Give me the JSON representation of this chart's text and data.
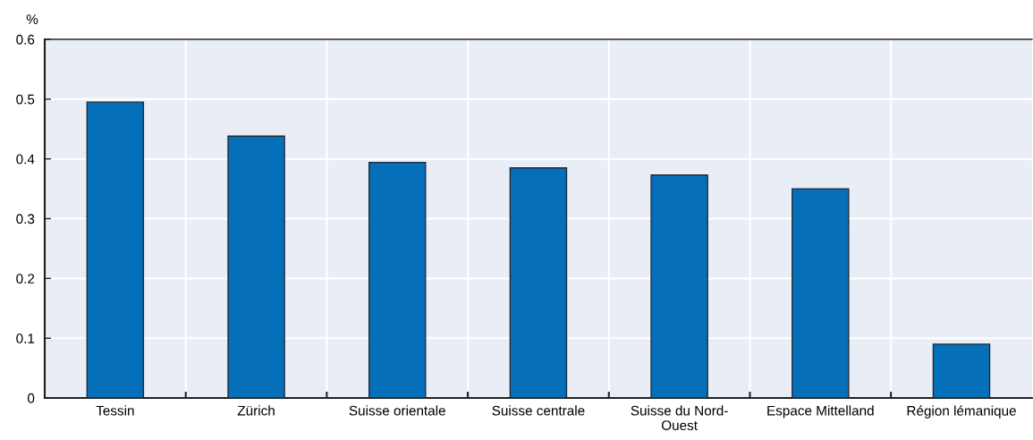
{
  "chart_data": {
    "type": "bar",
    "categories": [
      "Tessin",
      "Zürich",
      "Suisse orientale",
      "Suisse centrale",
      "Suisse du Nord-\nOuest",
      "Espace Mittelland",
      "Région lémanique"
    ],
    "values": [
      0.495,
      0.438,
      0.394,
      0.385,
      0.373,
      0.35,
      0.09
    ],
    "color": "#0570b9",
    "ylabel": "%",
    "ylim": [
      0,
      0.6
    ],
    "yticks": [
      0,
      0.1,
      0.2,
      0.3,
      0.4,
      0.5,
      0.6
    ],
    "grid": true,
    "legend": false
  }
}
